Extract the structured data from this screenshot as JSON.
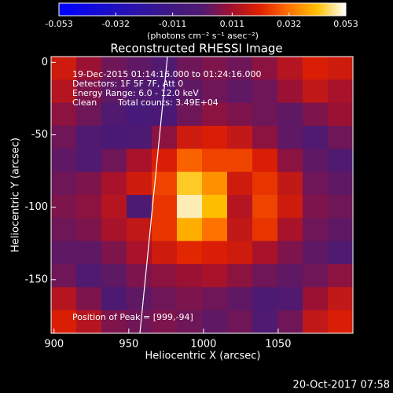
{
  "chart_data": {
    "type": "heatmap",
    "title": "Reconstructed RHESSI Image",
    "xlabel": "Heliocentric X (arcsec)",
    "ylabel": "Heliocentric Y (arcsec)",
    "xlim": [
      898,
      1100
    ],
    "ylim": [
      -187,
      4
    ],
    "xticks": [
      900,
      950,
      1000,
      1050
    ],
    "yticks": [
      0,
      -50,
      -100,
      -150
    ],
    "colorbar": {
      "label": "(photons cm⁻² s⁻¹ asec⁻²)",
      "clim": [
        -0.053,
        0.053
      ],
      "ticks": [
        -0.053,
        -0.032,
        -0.011,
        0.011,
        0.032,
        0.053
      ]
    },
    "colorscale": [
      "#0000ff",
      "#1008e0",
      "#2010c0",
      "#3014a0",
      "#401880",
      "#501a70",
      "#a01030",
      "#e02000",
      "#ff7000",
      "#ffc000",
      "#ffffff"
    ],
    "annotations": [
      "19-Dec-2015 01:14:16.000 to 01:24:16.000",
      "Detectors: 1F 5F 7F, Att 0",
      "Energy Range: 6.0 - 12.0 keV",
      "Clean",
      "Total counts: 3.49E+04",
      "Position of Peak = [999,-94]"
    ],
    "footer": "20-Oct-2017 07:58",
    "z": [
      [
        0.018,
        0.01,
        0.004,
        0.002,
        0.0,
        0.004,
        0.006,
        0.004,
        0.008,
        0.014,
        0.02,
        0.018
      ],
      [
        0.014,
        0.006,
        0.002,
        0.0,
        -0.004,
        0.002,
        0.004,
        0.002,
        0.004,
        0.01,
        0.016,
        0.012
      ],
      [
        0.008,
        0.004,
        0.0,
        -0.006,
        -0.004,
        0.004,
        0.008,
        0.006,
        0.004,
        0.002,
        0.006,
        0.01
      ],
      [
        0.004,
        0.0,
        -0.004,
        -0.002,
        0.008,
        0.018,
        0.02,
        0.016,
        0.008,
        0.002,
        0.0,
        0.004
      ],
      [
        0.002,
        0.0,
        0.004,
        0.012,
        0.02,
        0.03,
        0.026,
        0.026,
        0.02,
        0.008,
        0.002,
        0.0
      ],
      [
        0.004,
        0.006,
        0.012,
        0.018,
        0.026,
        0.044,
        0.036,
        0.018,
        0.024,
        0.016,
        0.004,
        0.002
      ],
      [
        0.006,
        0.008,
        0.014,
        -0.002,
        0.024,
        0.05,
        0.042,
        0.014,
        0.026,
        0.018,
        0.006,
        0.004
      ],
      [
        0.004,
        0.006,
        0.012,
        0.016,
        0.024,
        0.04,
        0.032,
        0.016,
        0.024,
        0.012,
        0.004,
        0.002
      ],
      [
        0.002,
        0.002,
        0.006,
        0.012,
        0.018,
        0.022,
        0.02,
        0.018,
        0.012,
        0.006,
        0.002,
        0.0
      ],
      [
        0.004,
        0.0,
        0.002,
        0.006,
        0.008,
        0.01,
        0.012,
        0.008,
        0.004,
        0.002,
        0.004,
        0.008
      ],
      [
        0.014,
        0.006,
        -0.002,
        0.002,
        0.004,
        0.006,
        0.004,
        0.002,
        -0.002,
        0.0,
        0.01,
        0.016
      ],
      [
        0.02,
        0.014,
        0.006,
        0.004,
        0.006,
        0.004,
        0.002,
        0.004,
        0.0,
        0.004,
        0.016,
        0.02
      ]
    ]
  }
}
